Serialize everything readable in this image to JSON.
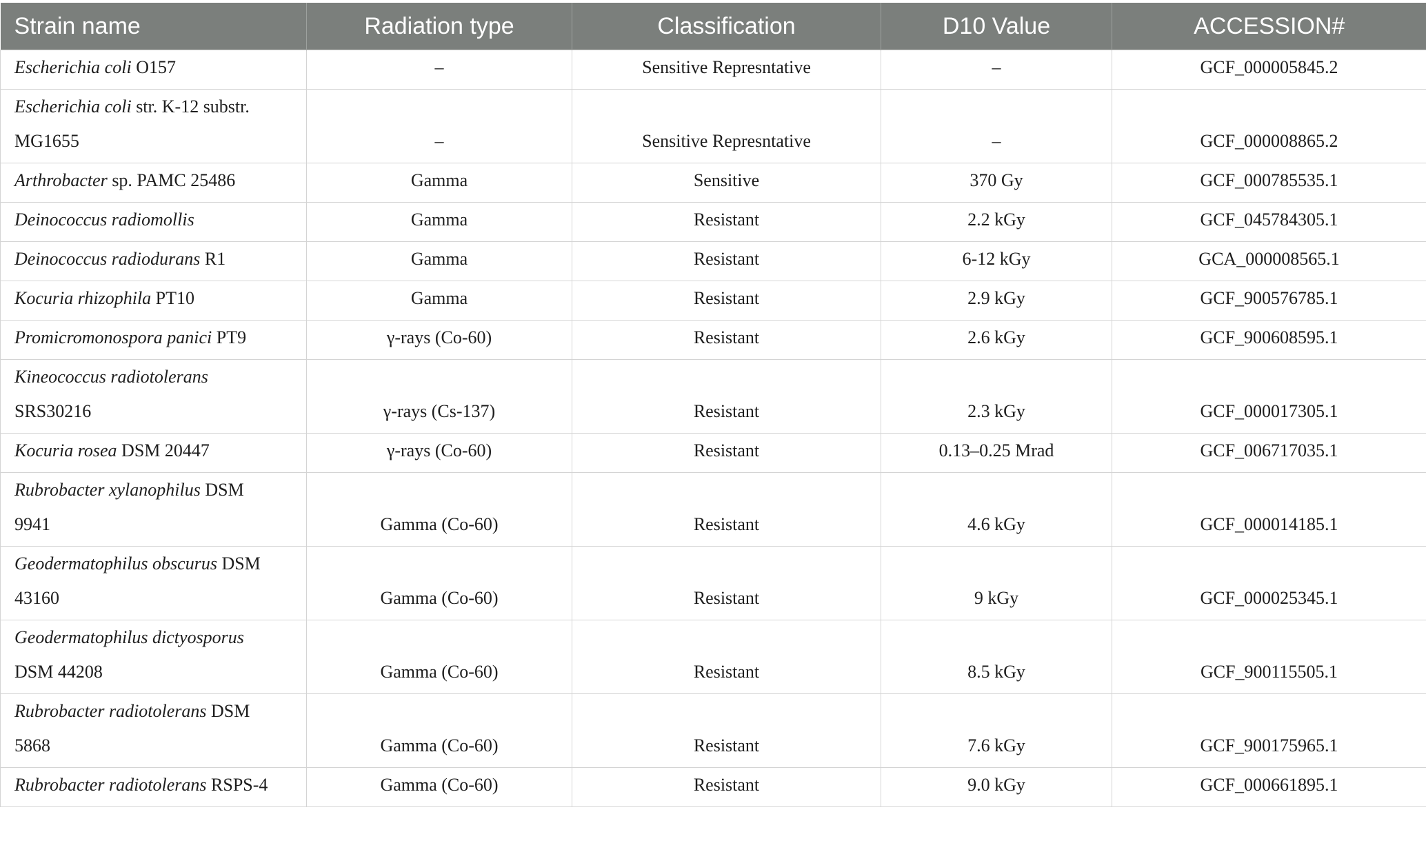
{
  "headers": [
    "Strain name",
    "Radiation type",
    "Classification",
    "D10 Value",
    "ACCESSION#"
  ],
  "rows": [
    {
      "strain_italic": "Escherichia coli",
      "strain_rest": " O157",
      "strain_line2": "",
      "radiation": "–",
      "classification": "Sensitive Represntative",
      "d10": "–",
      "accession": "GCF_000005845.2"
    },
    {
      "strain_italic": "Escherichia coli",
      "strain_rest": " str. K-12 substr.",
      "strain_line2": "MG1655",
      "radiation": "–",
      "classification": "Sensitive Represntative",
      "d10": "–",
      "accession": "GCF_000008865.2"
    },
    {
      "strain_italic": "Arthrobacter",
      "strain_rest": " sp. PAMC 25486",
      "strain_line2": "",
      "radiation": "Gamma",
      "classification": "Sensitive",
      "d10": "370 Gy",
      "accession": "GCF_000785535.1"
    },
    {
      "strain_italic": "Deinococcus radiomollis",
      "strain_rest": "",
      "strain_line2": "",
      "radiation": "Gamma",
      "classification": "Resistant",
      "d10": "2.2 kGy",
      "accession": "GCF_045784305.1"
    },
    {
      "strain_italic": "Deinococcus radiodurans",
      "strain_rest": " R1",
      "strain_line2": "",
      "radiation": "Gamma",
      "classification": "Resistant",
      "d10": "6-12 kGy",
      "accession": "GCA_000008565.1"
    },
    {
      "strain_italic": "Kocuria rhizophila",
      "strain_rest": " PT10",
      "strain_line2": "",
      "radiation": "Gamma",
      "classification": "Resistant",
      "d10": "2.9 kGy",
      "accession": "GCF_900576785.1"
    },
    {
      "strain_italic": "Promicromonospora panici",
      "strain_rest": " PT9",
      "strain_line2": "",
      "radiation": "γ-rays (Co-60)",
      "classification": "Resistant",
      "d10": "2.6 kGy",
      "accession": "GCF_900608595.1"
    },
    {
      "strain_italic": "Kineococcus radiotolerans",
      "strain_rest": "",
      "strain_line2": "SRS30216",
      "radiation": "γ-rays (Cs-137)",
      "classification": "Resistant",
      "d10": "2.3 kGy",
      "accession": "GCF_000017305.1"
    },
    {
      "strain_italic": "Kocuria rosea",
      "strain_rest": " DSM 20447",
      "strain_line2": "",
      "radiation": "γ-rays (Co-60)",
      "classification": "Resistant",
      "d10": "0.13–0.25 Mrad",
      "accession": "GCF_006717035.1"
    },
    {
      "strain_italic": "Rubrobacter xylanophilus",
      "strain_rest": " DSM",
      "strain_line2": "9941",
      "radiation": "Gamma (Co-60)",
      "classification": "Resistant",
      "d10": "4.6 kGy",
      "accession": "GCF_000014185.1"
    },
    {
      "strain_italic": "Geodermatophilus obscurus",
      "strain_rest": " DSM",
      "strain_line2": "43160",
      "radiation": "Gamma (Co-60)",
      "classification": "Resistant",
      "d10": "9 kGy",
      "accession": "GCF_000025345.1"
    },
    {
      "strain_italic": "Geodermatophilus dictyosporus",
      "strain_rest": "",
      "strain_line2": "DSM 44208",
      "radiation": "Gamma (Co-60)",
      "classification": "Resistant",
      "d10": "8.5 kGy",
      "accession": "GCF_900115505.1"
    },
    {
      "strain_italic": "Rubrobacter radiotolerans",
      "strain_rest": " DSM",
      "strain_line2": "5868",
      "radiation": "Gamma (Co-60)",
      "classification": "Resistant",
      "d10": "7.6 kGy",
      "accession": "GCF_900175965.1"
    },
    {
      "strain_italic": "Rubrobacter radiotolerans",
      "strain_rest": " RSPS-4",
      "strain_line2": "",
      "radiation": "Gamma (Co-60)",
      "classification": "Resistant",
      "d10": "9.0 kGy",
      "accession": "GCF_000661895.1"
    }
  ]
}
